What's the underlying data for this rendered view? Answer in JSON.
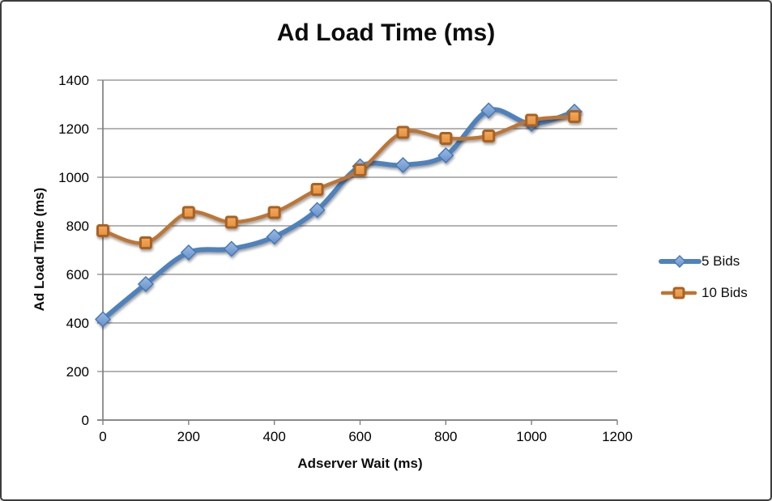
{
  "title": "Ad Load Time (ms)",
  "axes": {
    "x_title": "Adserver Wait (ms)",
    "y_title": "Ad Load Time (ms)"
  },
  "chart_data": {
    "type": "line",
    "title": "Ad Load Time (ms)",
    "xlabel": "Adserver Wait (ms)",
    "ylabel": "Ad Load Time (ms)",
    "x": [
      0,
      100,
      200,
      300,
      400,
      500,
      600,
      700,
      800,
      900,
      1000,
      1100
    ],
    "series": [
      {
        "name": "5 Bids",
        "marker": "diamond",
        "line_color": "#4F81BD",
        "marker_fill_top": "#9BBBE4",
        "marker_fill_bottom": "#6590CA",
        "marker_stroke": "#4676B4",
        "values": [
          415,
          560,
          690,
          705,
          755,
          865,
          1045,
          1050,
          1090,
          1275,
          1220,
          1270
        ]
      },
      {
        "name": "10 Bids",
        "marker": "square",
        "line_color": "#BE7434",
        "marker_fill_top": "#F2A95E",
        "marker_fill_bottom": "#E5913F",
        "marker_stroke": "#A96220",
        "values": [
          780,
          730,
          855,
          815,
          855,
          950,
          1030,
          1185,
          1160,
          1170,
          1235,
          1250
        ]
      }
    ],
    "xlim": [
      0,
      1200
    ],
    "ylim": [
      0,
      1400
    ],
    "xticks": [
      0,
      200,
      400,
      600,
      800,
      1000,
      1200
    ],
    "yticks": [
      0,
      200,
      400,
      600,
      800,
      1000,
      1200,
      1400
    ],
    "grid": "horizontal",
    "legend_position": "right-middle"
  },
  "styles": {
    "grid_color": "#9C9C9C",
    "axis_color": "#7F7F7F",
    "background": "#FFFFFF",
    "frame_border": "#3D3D3D",
    "text_color": "#000000"
  }
}
